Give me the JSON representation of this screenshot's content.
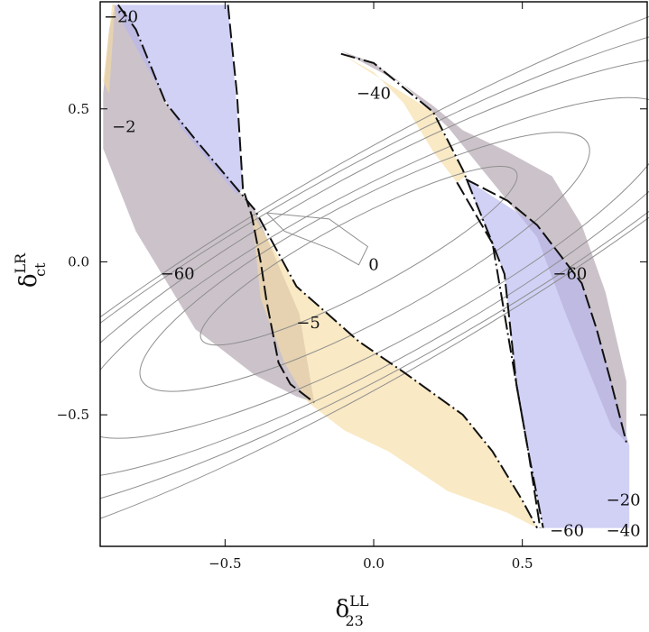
{
  "chart_data": {
    "type": "contour",
    "xlabel": {
      "main": "δ",
      "sup": "LL",
      "sub": "23"
    },
    "ylabel": {
      "main": "δ",
      "sup": "LR",
      "sub": "ct"
    },
    "xlim": [
      -0.92,
      0.92
    ],
    "ylim": [
      -0.93,
      0.85
    ],
    "xticks": [
      {
        "value": -0.5,
        "label": "−0.5"
      },
      {
        "value": 0.0,
        "label": "0.0"
      },
      {
        "value": 0.5,
        "label": "0.5"
      }
    ],
    "yticks": [
      {
        "value": 0.5,
        "label": "0.5"
      },
      {
        "value": 0.0,
        "label": "0.0"
      },
      {
        "value": -0.5,
        "label": "−0.5"
      }
    ],
    "colors": {
      "gray_region": "#8e7a8a",
      "gray_opacity": 0.45,
      "blue_region": "#b4b4f0",
      "blue_opacity": 0.62,
      "orange_region": "#f6dc9f",
      "orange_opacity": 0.62,
      "contour_line": "#8f8f8f",
      "frame": "#000000"
    },
    "regions": [
      {
        "name": "gray-left",
        "color": "gray",
        "points": [
          [
            -0.89,
            0.76
          ],
          [
            -0.87,
            0.84
          ],
          [
            -0.82,
            0.8
          ],
          [
            -0.7,
            0.52
          ],
          [
            -0.6,
            0.4
          ],
          [
            -0.4,
            0.17
          ],
          [
            -0.25,
            -0.17
          ],
          [
            -0.2,
            -0.46
          ],
          [
            -0.26,
            -0.44
          ],
          [
            -0.4,
            -0.37
          ],
          [
            -0.6,
            -0.22
          ],
          [
            -0.8,
            0.1
          ],
          [
            -0.91,
            0.37
          ],
          [
            -0.91,
            0.55
          ]
        ]
      },
      {
        "name": "gray-right",
        "color": "gray",
        "points": [
          [
            -0.11,
            0.69
          ],
          [
            0.0,
            0.65
          ],
          [
            0.2,
            0.51
          ],
          [
            0.3,
            0.43
          ],
          [
            0.45,
            0.36
          ],
          [
            0.6,
            0.28
          ],
          [
            0.7,
            0.12
          ],
          [
            0.78,
            -0.1
          ],
          [
            0.85,
            -0.39
          ],
          [
            0.85,
            -0.59
          ],
          [
            0.8,
            -0.54
          ],
          [
            0.65,
            -0.18
          ],
          [
            0.55,
            0.08
          ],
          [
            0.4,
            0.26
          ],
          [
            0.25,
            0.44
          ],
          [
            0.1,
            0.58
          ]
        ]
      },
      {
        "name": "blue-left",
        "color": "blue",
        "points": [
          [
            -0.88,
            0.84
          ],
          [
            -0.49,
            0.84
          ],
          [
            -0.48,
            0.74
          ],
          [
            -0.44,
            0.24
          ],
          [
            -0.46,
            0.22
          ],
          [
            -0.65,
            0.44
          ],
          [
            -0.85,
            0.79
          ]
        ]
      },
      {
        "name": "blue-right",
        "color": "blue",
        "points": [
          [
            0.31,
            0.27
          ],
          [
            0.55,
            0.12
          ],
          [
            0.7,
            -0.07
          ],
          [
            0.75,
            -0.22
          ],
          [
            0.86,
            -0.6
          ],
          [
            0.86,
            -0.87
          ],
          [
            0.65,
            -0.87
          ],
          [
            0.57,
            -0.87
          ],
          [
            0.52,
            -0.62
          ],
          [
            0.48,
            -0.4
          ],
          [
            0.44,
            -0.04
          ],
          [
            0.4,
            0.06
          ]
        ]
      },
      {
        "name": "orange-left",
        "color": "orange",
        "points": [
          [
            -0.91,
            0.59
          ],
          [
            -0.88,
            0.84
          ],
          [
            -0.87,
            0.84
          ],
          [
            -0.89,
            0.55
          ]
        ]
      },
      {
        "name": "orange-upper",
        "color": "orange",
        "points": [
          [
            -0.11,
            0.68
          ],
          [
            0.2,
            0.49
          ],
          [
            0.27,
            0.35
          ],
          [
            0.31,
            0.28
          ],
          [
            0.28,
            0.26
          ],
          [
            0.2,
            0.36
          ],
          [
            0.1,
            0.52
          ],
          [
            0.0,
            0.62
          ]
        ]
      },
      {
        "name": "orange-center",
        "color": "orange",
        "points": [
          [
            -0.41,
            0.16
          ],
          [
            -0.26,
            -0.08
          ],
          [
            -0.05,
            -0.26
          ],
          [
            0.1,
            -0.36
          ],
          [
            0.3,
            -0.5
          ],
          [
            0.4,
            -0.62
          ],
          [
            0.5,
            -0.78
          ],
          [
            0.55,
            -0.87
          ],
          [
            0.45,
            -0.82
          ],
          [
            0.25,
            -0.75
          ],
          [
            0.05,
            -0.62
          ],
          [
            -0.1,
            -0.55
          ],
          [
            -0.22,
            -0.46
          ],
          [
            -0.3,
            -0.33
          ],
          [
            -0.38,
            -0.12
          ]
        ]
      }
    ],
    "contours": [
      {
        "points": [
          [
            -0.36,
            0.16
          ],
          [
            -0.15,
            0.14
          ],
          [
            -0.02,
            0.05
          ],
          [
            -0.05,
            -0.01
          ],
          [
            -0.14,
            0.04
          ],
          [
            -0.3,
            0.1
          ],
          [
            -0.36,
            0.16
          ]
        ]
      },
      {
        "cx": -0.05,
        "cy": 0.02,
        "rx": 0.6,
        "ry": 0.12,
        "angle": -28
      },
      {
        "cx": -0.03,
        "cy": 0.0,
        "rx": 0.85,
        "ry": 0.2,
        "angle": -28
      },
      {
        "cx": 0.0,
        "cy": -0.02,
        "rx": 1.12,
        "ry": 0.26,
        "angle": -28
      },
      {
        "cx": 0.0,
        "cy": -0.02,
        "rx": 1.35,
        "ry": 0.31,
        "angle": -29
      },
      {
        "cx": 0.0,
        "cy": -0.02,
        "rx": 1.62,
        "ry": 0.34,
        "angle": -29
      },
      {
        "cx": 0.0,
        "cy": -0.02,
        "rx": 1.85,
        "ry": 0.36,
        "angle": -30
      }
    ],
    "boundary_lines": [
      {
        "style": "dashed",
        "points": [
          [
            -0.49,
            0.84
          ],
          [
            -0.48,
            0.74
          ],
          [
            -0.46,
            0.55
          ],
          [
            -0.44,
            0.24
          ],
          [
            -0.41,
            0.15
          ],
          [
            -0.38,
            0.0
          ],
          [
            -0.36,
            -0.13
          ],
          [
            -0.32,
            -0.33
          ],
          [
            -0.28,
            -0.4
          ],
          [
            -0.2,
            -0.46
          ]
        ]
      },
      {
        "style": "dashdot",
        "points": [
          [
            -0.86,
            0.84
          ],
          [
            -0.8,
            0.76
          ],
          [
            -0.7,
            0.52
          ],
          [
            -0.6,
            0.4
          ],
          [
            -0.4,
            0.17
          ],
          [
            -0.26,
            -0.08
          ],
          [
            -0.05,
            -0.26
          ],
          [
            0.1,
            -0.36
          ],
          [
            0.3,
            -0.5
          ],
          [
            0.4,
            -0.62
          ],
          [
            0.5,
            -0.78
          ],
          [
            0.55,
            -0.87
          ]
        ]
      },
      {
        "style": "dashdot",
        "points": [
          [
            -0.11,
            0.68
          ],
          [
            0.0,
            0.65
          ],
          [
            0.2,
            0.49
          ],
          [
            0.3,
            0.3
          ],
          [
            0.4,
            0.06
          ],
          [
            0.48,
            -0.4
          ],
          [
            0.52,
            -0.62
          ],
          [
            0.57,
            -0.87
          ]
        ]
      },
      {
        "style": "dashed",
        "points": [
          [
            0.28,
            0.26
          ],
          [
            0.4,
            0.06
          ],
          [
            0.44,
            -0.04
          ],
          [
            0.48,
            -0.4
          ],
          [
            0.52,
            -0.62
          ],
          [
            0.56,
            -0.87
          ]
        ]
      },
      {
        "style": "dashed",
        "points": [
          [
            0.31,
            0.27
          ],
          [
            0.45,
            0.2
          ],
          [
            0.55,
            0.12
          ],
          [
            0.7,
            -0.07
          ],
          [
            0.75,
            -0.22
          ],
          [
            0.8,
            -0.4
          ],
          [
            0.85,
            -0.59
          ]
        ]
      }
    ],
    "contour_labels": [
      {
        "text": "−20",
        "x": -0.85,
        "y": 0.8
      },
      {
        "text": "−40",
        "x": 0.0,
        "y": 0.55
      },
      {
        "text": "−2",
        "x": -0.84,
        "y": 0.44
      },
      {
        "text": "−60",
        "x": -0.66,
        "y": -0.04
      },
      {
        "text": "0",
        "x": 0.0,
        "y": -0.01
      },
      {
        "text": "−60",
        "x": 0.66,
        "y": -0.04
      },
      {
        "text": "−5",
        "x": -0.22,
        "y": -0.2
      },
      {
        "text": "−20",
        "x": 0.84,
        "y": -0.78
      },
      {
        "text": "−60",
        "x": 0.65,
        "y": -0.88
      },
      {
        "text": "−40",
        "x": 0.84,
        "y": -0.88
      }
    ]
  }
}
